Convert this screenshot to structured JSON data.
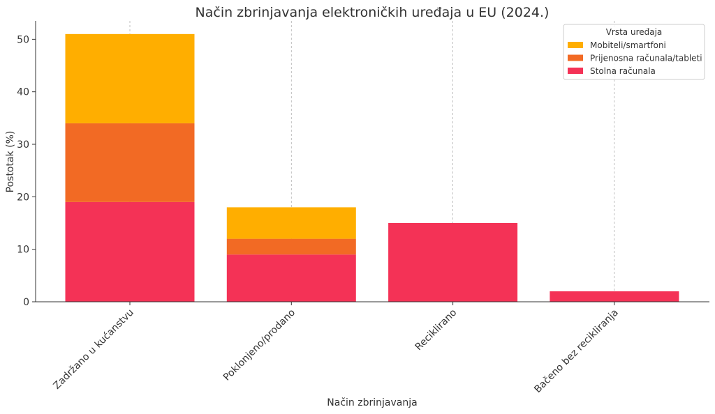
{
  "chart_data": {
    "type": "bar",
    "stacked": true,
    "title": "Način zbrinjavanja elektroničkih uređaja u EU (2024.)",
    "xlabel": "Način zbrinjavanja",
    "ylabel": "Postotak (%)",
    "categories": [
      "Zadržano u kućanstvu",
      "Poklonjeno/prodano",
      "Reciklirano",
      "Bačeno bez recikliranja"
    ],
    "series": [
      {
        "name": "Stolna računala",
        "color": "#F43256",
        "values": [
          19,
          9,
          15,
          2
        ]
      },
      {
        "name": "Prijenosna računala/tableti",
        "color": "#F26A24",
        "values": [
          15,
          3,
          0,
          0
        ]
      },
      {
        "name": "Mobiteli/smartfoni",
        "color": "#FFAE00",
        "values": [
          17,
          6,
          0,
          0
        ]
      }
    ],
    "ylim": [
      0,
      53.5
    ],
    "yticks": [
      0,
      10,
      20,
      30,
      40,
      50
    ],
    "grid": "x-dashed",
    "legend": {
      "title": "Vrsta uređaja",
      "placement": "top-right",
      "order": [
        "Mobiteli/smartfoni",
        "Prijenosna računala/tableti",
        "Stolna računala"
      ]
    }
  }
}
